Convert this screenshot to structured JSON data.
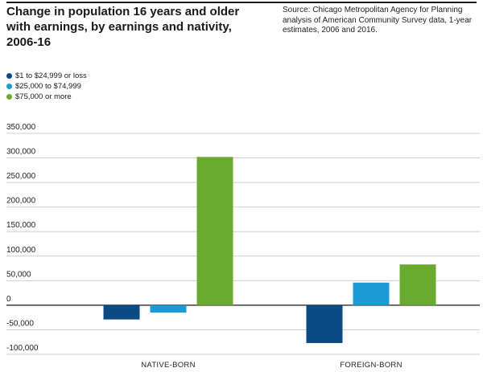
{
  "title": "Change in population 16 years and older with earnings, by earnings and nativity, 2006-16",
  "source": "Source: Chicago Metropolitan Agency for Planning analysis of American Community Survey data, 1-year estimates, 2006 and 2016.",
  "chart_data": {
    "type": "bar",
    "title": "Change in population 16 years and older with earnings, by earnings and nativity, 2006-16",
    "xlabel": "",
    "ylabel": "",
    "categories": [
      "NATIVE-BORN",
      "FOREIGN-BORN"
    ],
    "series": [
      {
        "name": "$1 to $24,999 or loss",
        "color": "#0b4a84",
        "values": [
          -29000,
          -77000
        ]
      },
      {
        "name": "$25,000 to $74,999",
        "color": "#1c9ad6",
        "values": [
          -15000,
          46000
        ]
      },
      {
        "name": "$75,000 or more",
        "color": "#6aab2f",
        "values": [
          302000,
          83000
        ]
      }
    ],
    "ylim": [
      -100000,
      350000
    ],
    "yticks": [
      350000,
      300000,
      250000,
      200000,
      150000,
      100000,
      50000,
      0,
      -50000,
      -100000
    ],
    "ytick_labels": [
      "350,000",
      "300,000",
      "250,000",
      "200,000",
      "150,000",
      "100,000",
      "50,000",
      "0",
      "-50,000",
      "-100,000"
    ],
    "grid": true,
    "legend_position": "top-left"
  }
}
